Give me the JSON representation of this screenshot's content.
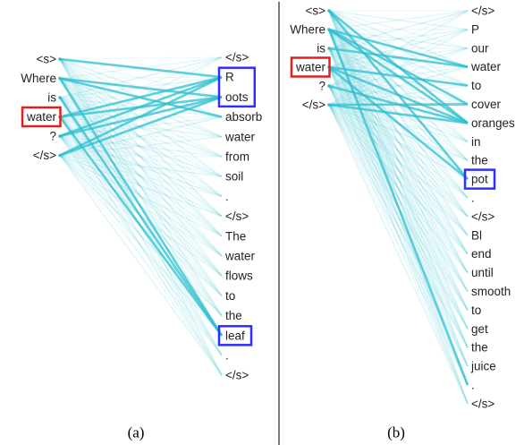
{
  "colors": {
    "attention": "#2bbfcf",
    "query_box": "#e02020",
    "key_box": "#2e2eff",
    "text": "#222222"
  },
  "panels": [
    {
      "caption": "(a)",
      "left_tokens": [
        "<s>",
        "Where",
        "is",
        "water",
        "?",
        "</s>"
      ],
      "right_tokens": [
        "</s>",
        "R",
        "oots",
        "absorb",
        "water",
        "from",
        "soil",
        ".",
        "</s>",
        "The",
        "water",
        "flows",
        "to",
        "the",
        "leaf",
        ".",
        "</s>"
      ],
      "highlight_left": [
        3
      ],
      "highlight_right_groups": [
        [
          1,
          2
        ],
        [
          14
        ]
      ],
      "strong_links": [
        [
          1,
          2
        ],
        [
          1,
          3
        ],
        [
          3,
          1
        ],
        [
          3,
          2
        ],
        [
          3,
          14
        ],
        [
          4,
          1
        ],
        [
          4,
          2
        ],
        [
          5,
          2
        ],
        [
          5,
          1
        ],
        [
          0,
          1
        ],
        [
          2,
          14
        ],
        [
          1,
          14
        ]
      ]
    },
    {
      "caption": "(b)",
      "left_tokens": [
        "<s>",
        "Where",
        "is",
        "water",
        "?",
        "</s>"
      ],
      "right_tokens": [
        "</s>",
        "P",
        "our",
        "water",
        "to",
        "cover",
        "oranges",
        "in",
        "the",
        "pot",
        ".",
        "</s>",
        "Bl",
        "end",
        "until",
        "smooth",
        "to",
        "get",
        "the",
        "juice",
        ".",
        "</s>"
      ],
      "highlight_left": [
        3
      ],
      "highlight_right_groups": [
        [
          9
        ]
      ],
      "strong_links": [
        [
          0,
          6
        ],
        [
          1,
          6
        ],
        [
          1,
          5
        ],
        [
          1,
          3
        ],
        [
          3,
          4
        ],
        [
          3,
          6
        ],
        [
          3,
          9
        ],
        [
          4,
          6
        ],
        [
          5,
          5
        ],
        [
          5,
          6
        ],
        [
          2,
          3
        ],
        [
          0,
          9
        ],
        [
          1,
          20
        ]
      ]
    }
  ]
}
